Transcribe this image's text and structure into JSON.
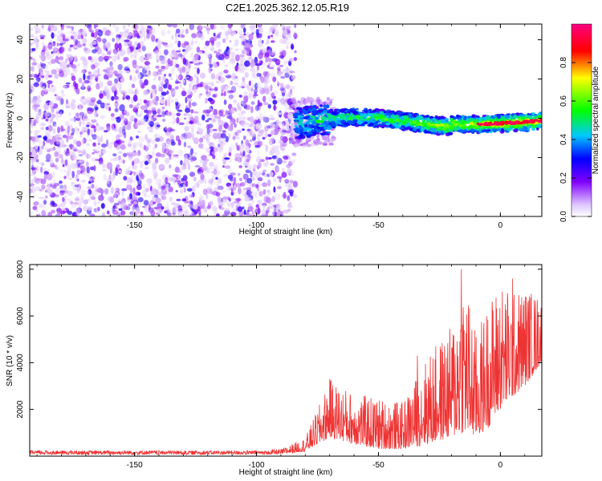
{
  "page_title": "C2E1.2025.362.12.05.R19",
  "chart_data": [
    {
      "type": "heatmap",
      "xlabel": "Height of straight line (km)",
      "ylabel": "Frequency (Hz)",
      "xlim": [
        -193,
        17
      ],
      "ylim": [
        -50,
        48
      ],
      "x_ticks": [
        -150,
        -100,
        -50,
        0
      ],
      "x_tick_labels": [
        "-150",
        "-100",
        "-50",
        "0"
      ],
      "y_ticks": [
        -40,
        -20,
        0,
        20,
        40
      ],
      "y_tick_labels": [
        "-40",
        "-20",
        "0",
        "20",
        "40"
      ],
      "colorbar": {
        "label": "Normalized spectral amplitude",
        "range": [
          0,
          1
        ],
        "ticks": [
          0,
          0.2,
          0.4,
          0.6,
          0.8
        ],
        "tick_labels": [
          "0.0",
          "0.2",
          "0.4",
          "0.6",
          "0.8"
        ],
        "colors": [
          "#e8d8ff",
          "#7f00ff",
          "#0000ff",
          "#00ffff",
          "#00ff00",
          "#ffff00",
          "#ff0000",
          "#ff0080"
        ]
      },
      "regions": [
        {
          "name": "noise",
          "x_range": [
            -193,
            -84
          ],
          "y_range": [
            -50,
            48
          ],
          "amplitude_range": [
            0.0,
            0.15
          ]
        },
        {
          "name": "signal-band",
          "x_range": [
            -84,
            17
          ],
          "center_freq": -2,
          "halfwidth_hz": 3.5,
          "amplitude_range": [
            0.2,
            0.9
          ]
        }
      ]
    },
    {
      "type": "line",
      "xlabel": "Height of straight line (km)",
      "ylabel": "SNR (10 * v/v)",
      "xlim": [
        -193,
        17
      ],
      "ylim": [
        0,
        8200
      ],
      "x_ticks": [
        -150,
        -100,
        -50,
        0
      ],
      "x_tick_labels": [
        "-150",
        "-100",
        "-50",
        "0"
      ],
      "y_ticks": [
        2000,
        4000,
        6000,
        8000
      ],
      "y_tick_labels": [
        "2000",
        "4000",
        "6000",
        "8000"
      ],
      "color": "#ee3333",
      "envelope": {
        "x": [
          -193,
          -90,
          -80,
          -73,
          -70,
          -60,
          -50,
          -40,
          -30,
          -20,
          -15,
          -10,
          -5,
          0,
          5,
          10,
          17
        ],
        "baseline": [
          50,
          80,
          200,
          600,
          800,
          500,
          300,
          300,
          500,
          800,
          1000,
          800,
          1200,
          2000,
          2500,
          3000,
          4000
        ],
        "peak": [
          300,
          300,
          800,
          2500,
          3300,
          2700,
          2500,
          2300,
          4300,
          5600,
          8000,
          5300,
          6600,
          7600,
          7000,
          7300,
          6800
        ]
      },
      "annotated_peaks": [
        {
          "x": -16,
          "y": 8000
        },
        {
          "x": 5,
          "y": 7600
        },
        {
          "x": -70,
          "y": 3300
        },
        {
          "x": -34,
          "y": 4300
        }
      ]
    }
  ]
}
